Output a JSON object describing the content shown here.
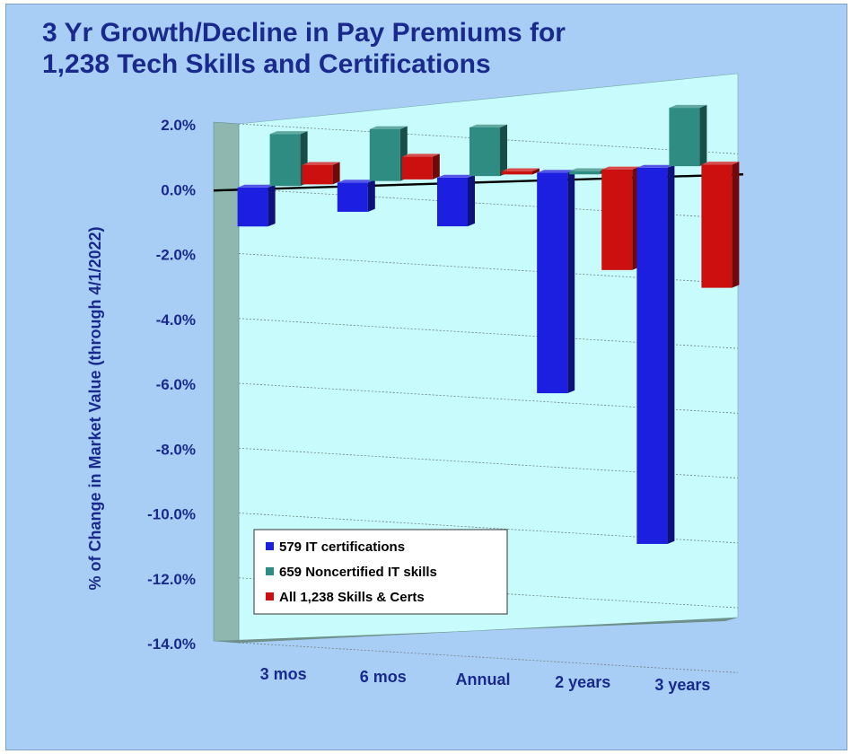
{
  "chart_data": {
    "type": "bar",
    "title_lines": [
      "3 Yr Growth/Decline in Pay Premiums for",
      "1,238 Tech Skills and Certifications"
    ],
    "ylabel": "% of Change in Market Value (through 4/1/2022)",
    "xlabel": "",
    "categories": [
      "3 mos",
      "6 mos",
      "Annual",
      "2 years",
      "3 years"
    ],
    "ylim": [
      -14,
      2
    ],
    "yticks": [
      2,
      0,
      -2,
      -4,
      -6,
      -8,
      -10,
      -12,
      -14
    ],
    "ytick_labels": [
      "2.0%",
      "0.0%",
      "-2.0%",
      "-4.0%",
      "-6.0%",
      "-8.0%",
      "-10.0%",
      "-12.0%",
      "-14.0%"
    ],
    "series": [
      {
        "name": "579 IT certifications",
        "color": "#1c1ee0",
        "values": [
          -1.2,
          -0.9,
          -1.5,
          -6.8,
          -11.6
        ]
      },
      {
        "name": "659 Noncertified IT skills",
        "color": "#2e8c82",
        "values": [
          1.6,
          1.6,
          1.5,
          -0.1,
          1.8
        ]
      },
      {
        "name": "All 1,238 Skills & Certs",
        "color": "#cc1010",
        "values": [
          0.6,
          0.7,
          0.1,
          -3.1,
          -3.8
        ]
      }
    ],
    "legend_position": "bottom-left",
    "grid": true
  }
}
